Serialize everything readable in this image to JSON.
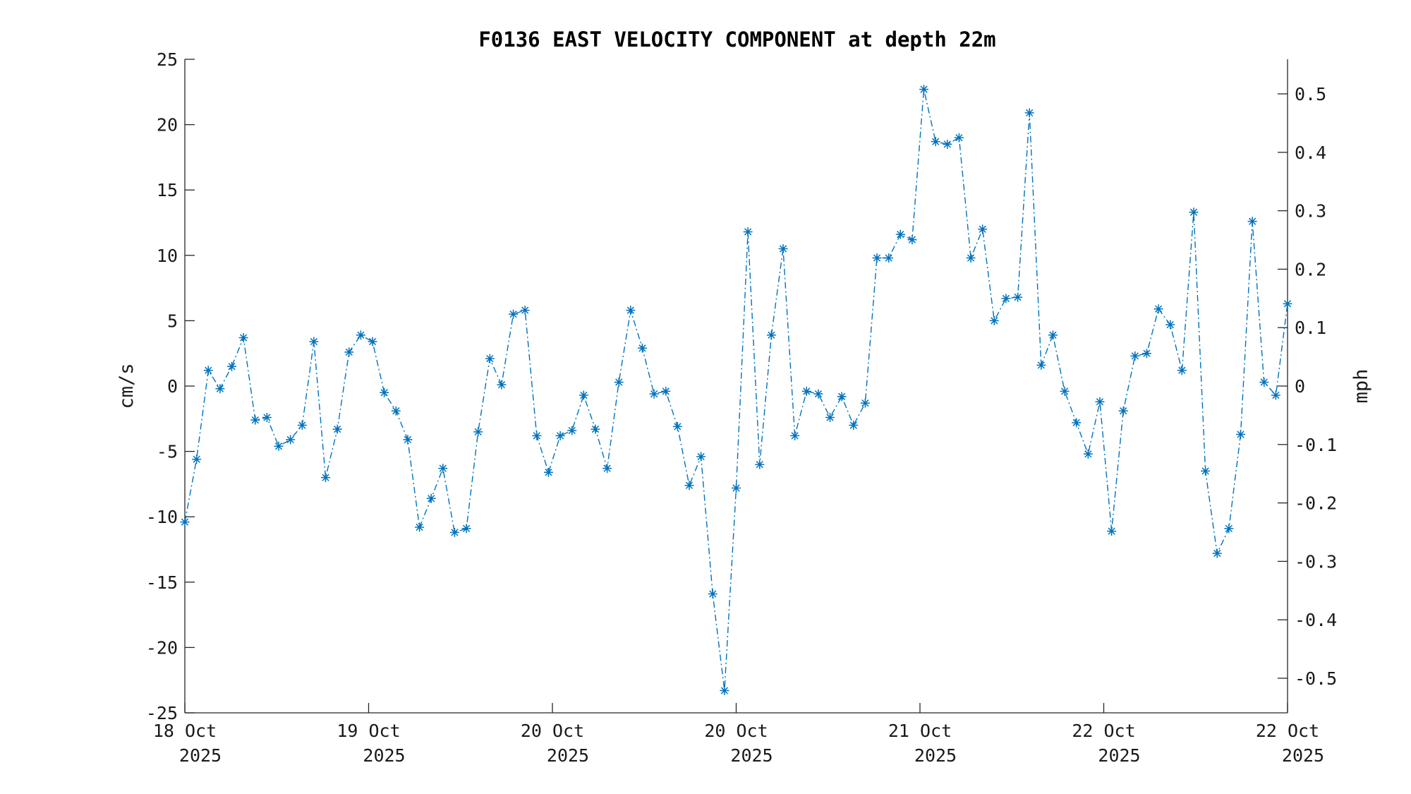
{
  "chart_data": {
    "type": "line",
    "title": "F0136 EAST VELOCITY COMPONENT at depth 22m",
    "ylabel": "cm/s",
    "ylabel_right": "mph",
    "ylim": [
      -25,
      25
    ],
    "ylim_right": [
      -0.5592,
      0.5592
    ],
    "y_ticks": [
      -25,
      -20,
      -15,
      -10,
      -5,
      0,
      5,
      10,
      15,
      20,
      25
    ],
    "y_ticks_right": [
      -0.5,
      -0.4,
      -0.3,
      -0.2,
      -0.1,
      0,
      0.1,
      0.2,
      0.3,
      0.4,
      0.5
    ],
    "x_ticks": [
      {
        "line1": "18 Oct",
        "line2": "2025"
      },
      {
        "line1": "19 Oct",
        "line2": "2025"
      },
      {
        "line1": "20 Oct",
        "line2": "2025"
      },
      {
        "line1": "20 Oct",
        "line2": "2025"
      },
      {
        "line1": "21 Oct",
        "line2": "2025"
      },
      {
        "line1": "22 Oct",
        "line2": "2025"
      },
      {
        "line1": "22 Oct",
        "line2": "2025"
      }
    ],
    "grid": false,
    "legend": "none",
    "series_style": {
      "color": "#0072bd",
      "line": "dash-dot",
      "marker": "asterisk"
    },
    "series": [
      {
        "values": [
          -10.4,
          -5.6,
          1.2,
          -0.2,
          1.5,
          3.7,
          -2.6,
          -2.4,
          -4.6,
          -4.1,
          -3.0,
          3.4,
          -7.0,
          -3.3,
          2.6,
          3.9,
          3.4,
          -0.5,
          -1.9,
          -4.1,
          -10.8,
          -8.6,
          -6.3,
          -11.2,
          -10.9,
          -3.5,
          2.1,
          0.1,
          5.5,
          5.8,
          -3.8,
          -6.6,
          -3.8,
          -3.4,
          -0.7,
          -3.3,
          -6.3,
          0.3,
          5.8,
          2.9,
          -0.6,
          -0.4,
          -3.1,
          -7.6,
          -5.4,
          -15.9,
          -23.3,
          -7.8,
          11.8,
          -6.0,
          3.9,
          10.5,
          -3.8,
          -0.4,
          -0.6,
          -2.4,
          -0.8,
          -3.0,
          -1.3,
          9.8,
          9.8,
          11.6,
          11.2,
          22.7,
          18.7,
          18.5,
          19.0,
          9.8,
          12.0,
          5.0,
          6.7,
          6.8,
          20.9,
          1.6,
          3.9,
          -0.4,
          -2.8,
          -5.2,
          -1.2,
          -11.1,
          -1.9,
          2.3,
          2.5,
          5.9,
          4.7,
          1.2,
          13.3,
          -6.5,
          -12.8,
          -10.9,
          -3.7,
          12.6,
          0.3,
          -0.7,
          6.3
        ]
      }
    ]
  }
}
